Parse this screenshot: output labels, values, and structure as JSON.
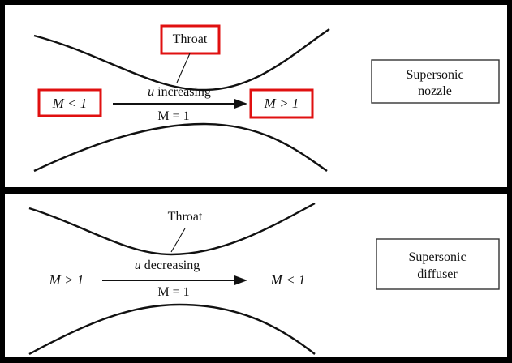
{
  "nozzle": {
    "throat_label": "Throat",
    "flow_text": "u increasing",
    "flow_var": "u",
    "flow_word": "increasing",
    "throat_mach": "M = 1",
    "inlet_mach": "M < 1",
    "outlet_mach": "M > 1",
    "type_label_line1": "Supersonic",
    "type_label_line2": "nozzle",
    "highlight_color": "#e01010"
  },
  "diffuser": {
    "throat_label": "Throat",
    "flow_text": "u decreasing",
    "flow_var": "u",
    "flow_word": "decreasing",
    "throat_mach": "M = 1",
    "inlet_mach": "M > 1",
    "outlet_mach": "M < 1",
    "type_label_line1": "Supersonic",
    "type_label_line2": "diffuser"
  }
}
